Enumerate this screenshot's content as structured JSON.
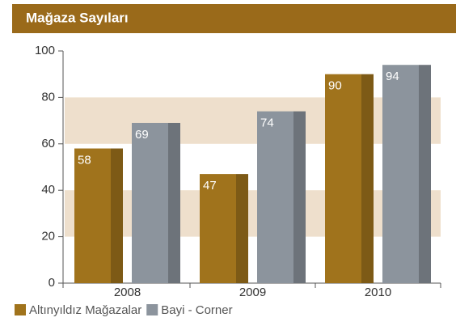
{
  "chart_data": {
    "type": "bar",
    "title": "Mağaza Sayıları",
    "categories": [
      "2008",
      "2009",
      "2010"
    ],
    "series": [
      {
        "name": "Altınyıldız Mağazalar",
        "color": "#a0731c",
        "values": [
          58,
          47,
          90
        ]
      },
      {
        "name": "Bayi - Corner",
        "color": "#8c949d",
        "values": [
          69,
          74,
          94
        ]
      }
    ],
    "ylim": [
      0,
      100
    ],
    "yticks": [
      0,
      20,
      40,
      60,
      80,
      100
    ],
    "grid": true,
    "legend": "bottom-left"
  }
}
